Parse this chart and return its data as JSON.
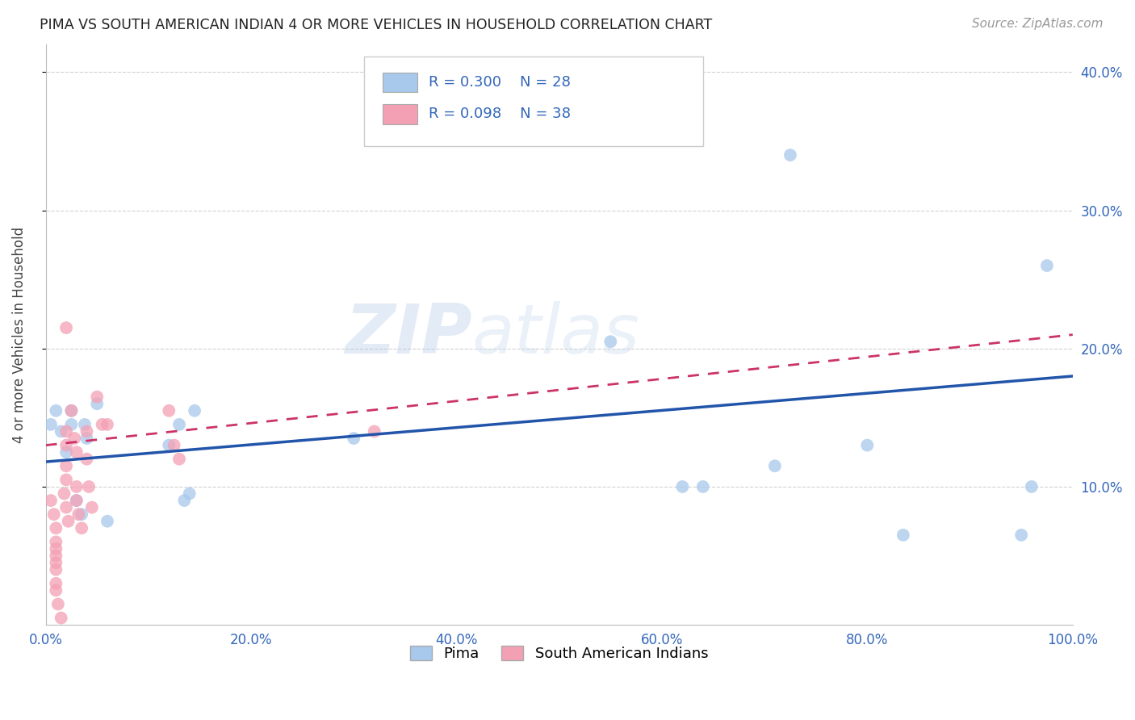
{
  "title": "PIMA VS SOUTH AMERICAN INDIAN 4 OR MORE VEHICLES IN HOUSEHOLD CORRELATION CHART",
  "source": "Source: ZipAtlas.com",
  "xlabel": "",
  "ylabel": "4 or more Vehicles in Household",
  "legend_label_1": "Pima",
  "legend_label_2": "South American Indians",
  "r1": 0.3,
  "n1": 28,
  "r2": 0.098,
  "n2": 38,
  "color1": "#A8C8EC",
  "color2": "#F4A0B4",
  "line_color1": "#2255AA",
  "line_color2": "#CC3366",
  "background_color": "#ffffff",
  "watermark_zip": "ZIP",
  "watermark_atlas": "atlas",
  "xlim": [
    0.0,
    1.0
  ],
  "ylim": [
    0.0,
    0.42
  ],
  "xticks": [
    0.0,
    0.2,
    0.4,
    0.6,
    0.8,
    1.0
  ],
  "yticks": [
    0.1,
    0.2,
    0.3,
    0.4
  ],
  "xticklabels": [
    "0.0%",
    "20.0%",
    "40.0%",
    "60.0%",
    "80.0%",
    "100.0%"
  ],
  "yticklabels_right": [
    "10.0%",
    "20.0%",
    "30.0%",
    "40.0%"
  ],
  "pima_x": [
    0.005,
    0.01,
    0.015,
    0.02,
    0.025,
    0.025,
    0.03,
    0.035,
    0.038,
    0.04,
    0.05,
    0.06,
    0.12,
    0.13,
    0.135,
    0.14,
    0.145,
    0.3,
    0.55,
    0.62,
    0.64,
    0.71,
    0.725,
    0.8,
    0.835,
    0.95,
    0.96,
    0.975
  ],
  "pima_y": [
    0.145,
    0.155,
    0.14,
    0.125,
    0.155,
    0.145,
    0.09,
    0.08,
    0.145,
    0.135,
    0.16,
    0.075,
    0.13,
    0.145,
    0.09,
    0.095,
    0.155,
    0.135,
    0.205,
    0.1,
    0.1,
    0.115,
    0.34,
    0.13,
    0.065,
    0.065,
    0.1,
    0.26
  ],
  "sa_x": [
    0.005,
    0.008,
    0.01,
    0.01,
    0.01,
    0.01,
    0.01,
    0.01,
    0.01,
    0.01,
    0.012,
    0.015,
    0.018,
    0.02,
    0.02,
    0.02,
    0.02,
    0.02,
    0.022,
    0.025,
    0.028,
    0.03,
    0.03,
    0.03,
    0.032,
    0.035,
    0.04,
    0.04,
    0.042,
    0.045,
    0.05,
    0.055,
    0.06,
    0.12,
    0.125,
    0.13,
    0.32,
    0.02
  ],
  "sa_y": [
    0.09,
    0.08,
    0.07,
    0.06,
    0.055,
    0.05,
    0.045,
    0.04,
    0.03,
    0.025,
    0.015,
    0.005,
    0.095,
    0.14,
    0.13,
    0.115,
    0.105,
    0.085,
    0.075,
    0.155,
    0.135,
    0.125,
    0.1,
    0.09,
    0.08,
    0.07,
    0.14,
    0.12,
    0.1,
    0.085,
    0.165,
    0.145,
    0.145,
    0.155,
    0.13,
    0.12,
    0.14,
    0.215
  ],
  "pima_line_x0": 0.0,
  "pima_line_y0": 0.118,
  "pima_line_x1": 1.0,
  "pima_line_y1": 0.18,
  "sa_line_x0": 0.0,
  "sa_line_y0": 0.13,
  "sa_line_x1": 1.0,
  "sa_line_y1": 0.21
}
